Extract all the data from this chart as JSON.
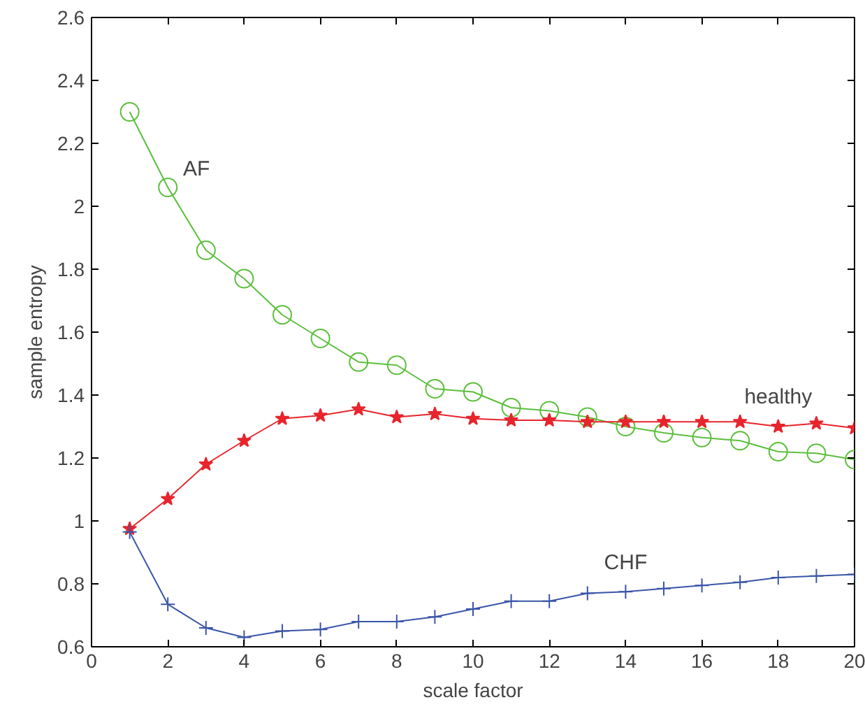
{
  "chart_data": {
    "type": "line",
    "xlabel": "scale factor",
    "ylabel": "sample entropy",
    "x": [
      1,
      2,
      3,
      4,
      5,
      6,
      7,
      8,
      9,
      10,
      11,
      12,
      13,
      14,
      15,
      16,
      17,
      18,
      19,
      20
    ],
    "xlim": [
      0,
      20
    ],
    "xticks": [
      0,
      2,
      4,
      6,
      8,
      10,
      12,
      14,
      16,
      18,
      20
    ],
    "ylim": [
      0.6,
      2.6
    ],
    "yticks": [
      0.6,
      0.8,
      1,
      1.2,
      1.4,
      1.6,
      1.8,
      2,
      2.2,
      2.4,
      2.6
    ],
    "grid": false,
    "series": [
      {
        "name": "AF",
        "color": "#5cbf3c",
        "marker": "circle",
        "values": [
          2.3,
          2.06,
          1.86,
          1.77,
          1.655,
          1.58,
          1.505,
          1.495,
          1.42,
          1.41,
          1.36,
          1.35,
          1.33,
          1.3,
          1.28,
          1.265,
          1.255,
          1.22,
          1.215,
          1.195
        ]
      },
      {
        "name": "healthy",
        "color": "#e8242c",
        "marker": "star",
        "values": [
          0.975,
          1.07,
          1.18,
          1.255,
          1.325,
          1.335,
          1.355,
          1.33,
          1.34,
          1.325,
          1.32,
          1.32,
          1.315,
          1.315,
          1.315,
          1.315,
          1.315,
          1.3,
          1.31,
          1.295
        ]
      },
      {
        "name": "CHF",
        "color": "#3a55a8",
        "marker": "cross",
        "values": [
          0.965,
          0.735,
          0.66,
          0.63,
          0.65,
          0.655,
          0.68,
          0.68,
          0.695,
          0.72,
          0.745,
          0.745,
          0.77,
          0.775,
          0.785,
          0.795,
          0.805,
          0.82,
          0.825,
          0.83
        ]
      }
    ]
  }
}
